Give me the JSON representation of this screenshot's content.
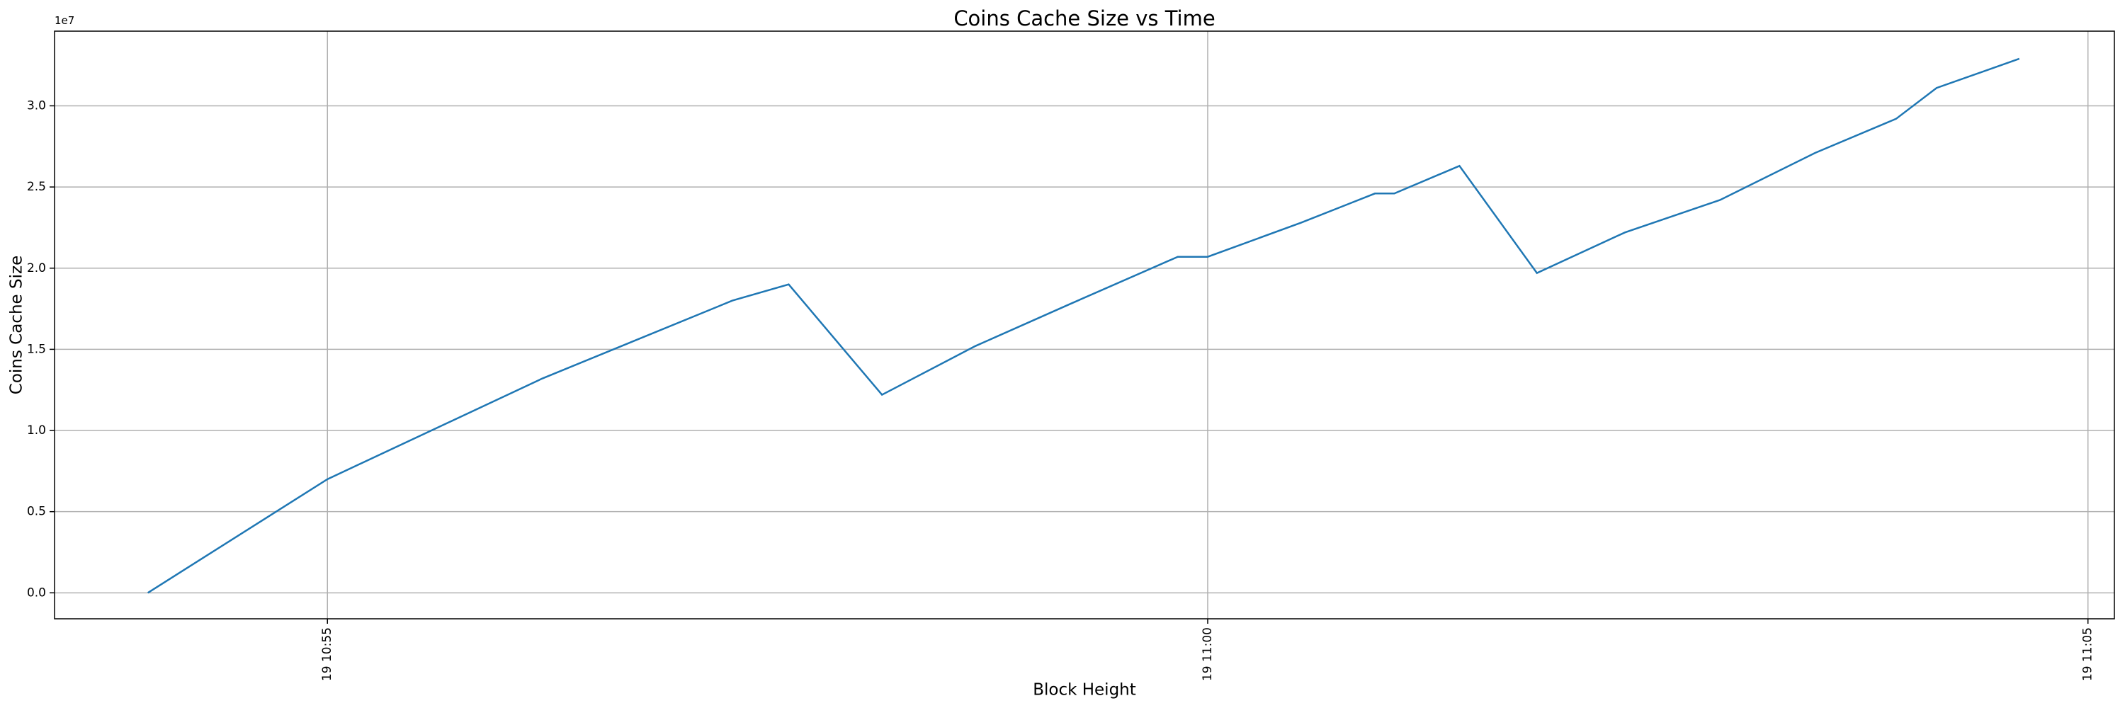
{
  "chart_data": {
    "type": "line",
    "title": "Coins Cache Size vs Time",
    "x_label": "Block Height",
    "y_label": "Coins Cache Size",
    "y_offset_label": "1e7",
    "x": [
      53.98,
      55.0,
      56.22,
      57.3,
      57.62,
      58.15,
      58.68,
      59.22,
      59.83,
      60.0,
      60.53,
      60.95,
      61.06,
      61.43,
      61.87,
      62.37,
      62.91,
      63.45,
      63.91,
      64.14,
      64.61
    ],
    "series": [
      {
        "name": "Coins Cache Size",
        "color": "#1f77b4",
        "values": [
          0.0,
          0.7,
          1.32,
          1.8,
          1.9,
          1.22,
          1.52,
          1.78,
          2.07,
          2.07,
          2.28,
          2.46,
          2.46,
          2.63,
          1.97,
          2.22,
          2.42,
          2.71,
          2.92,
          3.11,
          3.29
        ]
      }
    ],
    "xlim": [
      53.45,
      65.15
    ],
    "xticks": [
      {
        "value": 55,
        "label": "19 10:55"
      },
      {
        "value": 60,
        "label": "19 11:00"
      },
      {
        "value": 65,
        "label": "19 11:05"
      }
    ],
    "ylim": [
      -0.16,
      3.46
    ],
    "yticks": [
      {
        "value": 0,
        "label": "0.0"
      },
      0.5,
      {
        "value": 1,
        "label": "1.0"
      },
      1.5,
      {
        "value": 2,
        "label": "2.0"
      },
      2.5,
      {
        "value": 3,
        "label": "3.0"
      }
    ],
    "grid": true
  }
}
